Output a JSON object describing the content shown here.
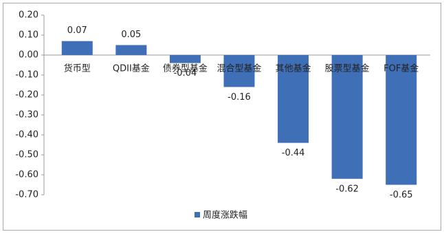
{
  "chart_data": {
    "type": "bar",
    "categories": [
      "货币型",
      "QDII基金",
      "债券型基金",
      "混合型基金",
      "其他基金",
      "股票型基金",
      "FOF基金"
    ],
    "series": [
      {
        "name": "周度涨跌幅",
        "color": "#3f6fb6",
        "values": [
          0.07,
          0.05,
          -0.04,
          -0.16,
          -0.44,
          -0.62,
          -0.65
        ]
      }
    ],
    "ylim": [
      -0.7,
      0.2
    ],
    "yticks": [
      {
        "value": -0.7,
        "label": "-0.70"
      },
      {
        "value": -0.6,
        "label": "-0.60"
      },
      {
        "value": -0.5,
        "label": "-0.50"
      },
      {
        "value": -0.4,
        "label": "-0.40"
      },
      {
        "value": -0.3,
        "label": "-0.30"
      },
      {
        "value": -0.2,
        "label": "-0.20"
      },
      {
        "value": -0.1,
        "label": "-0.10"
      },
      {
        "value": 0,
        "label": "0.00"
      },
      {
        "value": 0.1,
        "label": "0.10"
      },
      {
        "value": 0.2,
        "label": "0.20"
      }
    ],
    "legend": "bottom",
    "grid": false
  }
}
